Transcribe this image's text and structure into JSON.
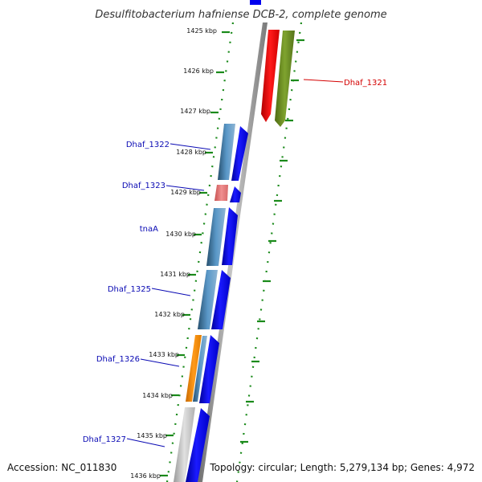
{
  "title": "Desulfitobacterium hafniense DCB-2, complete genome",
  "footer": {
    "accession": "Accession: NC_011830",
    "topology": "Topology: circular; Length: 5,279,134 bp; Genes: 4,972"
  },
  "kbp_ticks": [
    {
      "label": "1425 kbp"
    },
    {
      "label": "1426 kbp"
    },
    {
      "label": "1427 kbp"
    },
    {
      "label": "1428 kbp"
    },
    {
      "label": "1429 kbp"
    },
    {
      "label": "1430 kbp"
    },
    {
      "label": "1431 kbp"
    },
    {
      "label": "1432 kbp"
    },
    {
      "label": "1433 kbp"
    },
    {
      "label": "1434 kbp"
    },
    {
      "label": "1435 kbp"
    },
    {
      "label": "1436 kbp"
    }
  ],
  "gene_labels": [
    {
      "text": "Dhaf_1321",
      "color": "#d40000"
    },
    {
      "text": "Dhaf_1322",
      "color": "#0a0ab4"
    },
    {
      "text": "Dhaf_1323",
      "color": "#0a0ab4"
    },
    {
      "text": "tnaA",
      "color": "#0a0ab4"
    },
    {
      "text": "Dhaf_1325",
      "color": "#0a0ab4"
    },
    {
      "text": "Dhaf_1326",
      "color": "#0a0ab4"
    },
    {
      "text": "Dhaf_1327",
      "color": "#0a0ab4"
    }
  ],
  "colors": {
    "backbone": "#8c8c8c",
    "tick_green": "#1a8a1a",
    "cds_blue": "#0000ee",
    "gene_steel": "#4682b4",
    "gene_red": "#ff0000",
    "gene_olive": "#6b8e23",
    "gene_pink": "#e07070",
    "gene_orange": "#ff8c00",
    "gene_gray": "#c0c0c0"
  }
}
